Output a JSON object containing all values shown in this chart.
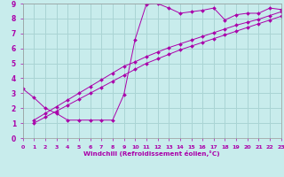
{
  "xlabel": "Windchill (Refroidissement éolien,°C)",
  "bg_color": "#c8ecec",
  "grid_color": "#aad4d4",
  "line_color": "#aa00aa",
  "xlim": [
    0,
    23
  ],
  "ylim": [
    0,
    9
  ],
  "xticks": [
    0,
    1,
    2,
    3,
    4,
    5,
    6,
    7,
    8,
    9,
    10,
    11,
    12,
    13,
    14,
    15,
    16,
    17,
    18,
    19,
    20,
    21,
    22,
    23
  ],
  "yticks": [
    0,
    1,
    2,
    3,
    4,
    5,
    6,
    7,
    8,
    9
  ],
  "curve1_x": [
    0,
    1,
    2,
    3,
    4,
    5,
    6,
    7,
    8,
    9,
    10,
    11,
    12,
    13,
    14,
    15,
    16,
    17,
    18,
    19,
    20,
    21,
    22,
    23
  ],
  "curve1_y": [
    3.3,
    2.7,
    2.0,
    1.65,
    1.2,
    1.2,
    1.2,
    1.2,
    1.2,
    2.9,
    6.6,
    8.95,
    9.0,
    8.7,
    8.35,
    8.45,
    8.55,
    8.7,
    7.9,
    8.25,
    8.35,
    8.35,
    8.7,
    8.6
  ],
  "curve2_x": [
    1,
    2,
    3,
    4,
    5,
    6,
    7,
    8,
    9,
    10,
    11,
    12,
    13,
    14,
    15,
    16,
    17,
    18,
    19,
    20,
    21,
    22,
    23
  ],
  "curve2_y": [
    1.0,
    1.4,
    1.8,
    2.2,
    2.6,
    3.0,
    3.4,
    3.8,
    4.2,
    4.6,
    5.0,
    5.3,
    5.6,
    5.9,
    6.15,
    6.4,
    6.65,
    6.9,
    7.15,
    7.4,
    7.65,
    7.9,
    8.15
  ],
  "curve3_x": [
    1,
    2,
    3,
    4,
    5,
    6,
    7,
    8,
    9,
    10,
    11,
    12,
    13,
    14,
    15,
    16,
    17,
    18,
    19,
    20,
    21,
    22,
    23
  ],
  "curve3_y": [
    1.2,
    1.65,
    2.1,
    2.55,
    3.0,
    3.45,
    3.9,
    4.35,
    4.8,
    5.1,
    5.45,
    5.75,
    6.05,
    6.3,
    6.55,
    6.8,
    7.05,
    7.3,
    7.55,
    7.75,
    7.95,
    8.2,
    8.45
  ]
}
